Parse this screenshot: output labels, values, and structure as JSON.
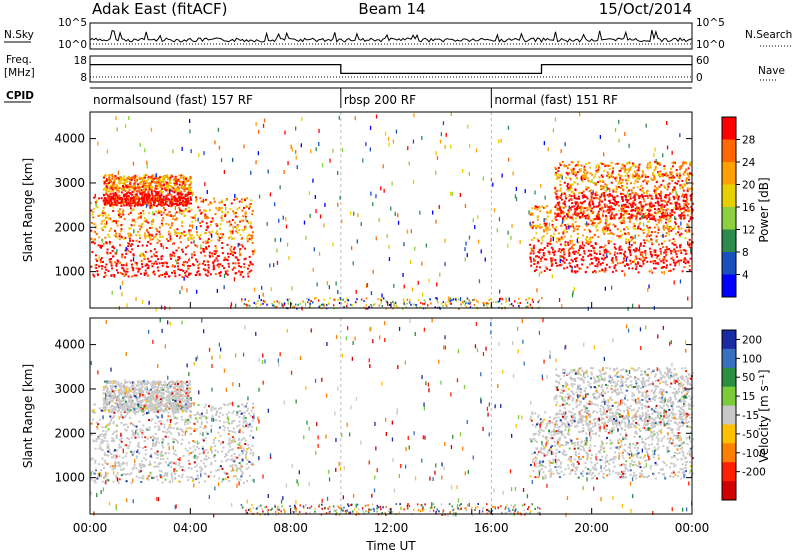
{
  "header": {
    "radar": "Adak East (fitACF)",
    "beam": "Beam 14",
    "date": "15/Oct/2014"
  },
  "param_panels": {
    "nsky_label": "N.Sky",
    "nsearch_label": "N.Search",
    "freq_label": "Freq.",
    "freq_unit": "[MHz]",
    "nave_label": "Nave",
    "cpid_label": "CPID",
    "left_ticks_noise": [
      "10^5",
      "10^0"
    ],
    "right_ticks_noise": [
      "10^5",
      "10^0"
    ],
    "left_ticks_freq": [
      "18",
      "8"
    ],
    "right_ticks_freq": [
      "60",
      "0"
    ]
  },
  "cpid_segments": [
    {
      "label": "normalsound (fast) 157 RF",
      "start_hour": 0,
      "end_hour": 10
    },
    {
      "label": "rbsp 200 RF",
      "start_hour": 10,
      "end_hour": 16
    },
    {
      "label": "normal (fast) 151 RF",
      "start_hour": 16,
      "end_hour": 24
    }
  ],
  "power_colorbar": {
    "label": "Power [dB]",
    "ticks": [
      "28",
      "24",
      "20",
      "16",
      "12",
      "8",
      "4"
    ],
    "colors": [
      "#ff0000",
      "#ff6a00",
      "#ffa000",
      "#e8d000",
      "#8ccf40",
      "#2c8a4a",
      "#1a4fbf",
      "#0000ff"
    ]
  },
  "velocity_colorbar": {
    "label": "Velocity [m s⁻¹]",
    "ticks": [
      "200",
      "100",
      "50",
      "15",
      "-15",
      "-50",
      "-100",
      "-200"
    ],
    "colors": [
      "#1a2aa0",
      "#3870c0",
      "#2a8f40",
      "#7ccc3a",
      "#c8c8c8",
      "#ffc000",
      "#ff8000",
      "#ff2000",
      "#d00000"
    ]
  },
  "chart_data": {
    "type": "heatmap",
    "xlabel": "Time UT",
    "ylabel": "Slant Range [km]",
    "x_ticks": [
      "00:00",
      "04:00",
      "08:00",
      "12:00",
      "16:00",
      "20:00",
      "00:00"
    ],
    "x_range_hours": [
      0,
      24
    ],
    "y_ticks": [
      1000,
      2000,
      3000,
      4000
    ],
    "y_range_km": [
      180,
      4600
    ],
    "frequency_mhz": [
      {
        "start_hour": 0,
        "end_hour": 10,
        "value": 15
      },
      {
        "start_hour": 10,
        "end_hour": 18,
        "value": 11
      },
      {
        "start_hour": 18,
        "end_hour": 24,
        "value": 15
      }
    ],
    "nave": 8,
    "backscatter_bands": [
      {
        "start_hour": 0,
        "end_hour": 6.5,
        "range_top_km": 2700,
        "range_bottom_km": 900,
        "power_db": 28
      },
      {
        "start_hour": 0.5,
        "end_hour": 4,
        "range_top_km": 3200,
        "range_bottom_km": 2500,
        "power_db": 22
      },
      {
        "start_hour": 17.5,
        "end_hour": 24,
        "range_top_km": 2500,
        "range_bottom_km": 1000,
        "power_db": 28
      },
      {
        "start_hour": 18.5,
        "end_hour": 24,
        "range_top_km": 3500,
        "range_bottom_km": 2200,
        "power_db": 20
      }
    ]
  }
}
